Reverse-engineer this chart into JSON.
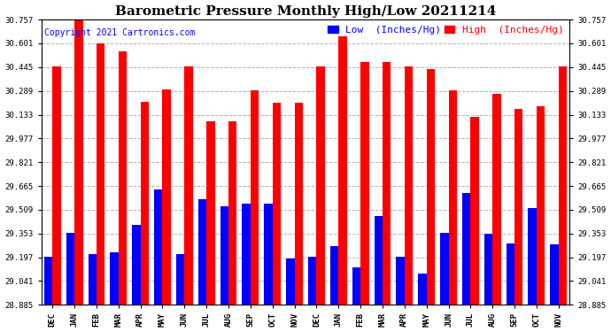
{
  "title": "Barometric Pressure Monthly High/Low 20211214",
  "copyright": "Copyright 2021 Cartronics.com",
  "legend_low": "Low  (Inches/Hg)",
  "legend_high": "High  (Inches/Hg)",
  "months": [
    "DEC",
    "JAN",
    "FEB",
    "MAR",
    "APR",
    "MAY",
    "JUN",
    "JUL",
    "AUG",
    "SEP",
    "OCT",
    "NOV",
    "DEC",
    "JAN",
    "FEB",
    "MAR",
    "APR",
    "MAY",
    "JUN",
    "JUL",
    "AUG",
    "SEP",
    "OCT",
    "NOV"
  ],
  "high_values": [
    30.45,
    30.76,
    30.6,
    30.55,
    30.22,
    30.3,
    30.45,
    30.09,
    30.09,
    30.29,
    30.21,
    30.21,
    30.45,
    30.65,
    30.48,
    30.48,
    30.45,
    30.43,
    30.29,
    30.12,
    30.27,
    30.17,
    30.19,
    30.45
  ],
  "low_values": [
    29.2,
    29.36,
    29.22,
    29.23,
    29.41,
    29.64,
    29.22,
    29.58,
    29.53,
    29.55,
    29.55,
    29.19,
    29.2,
    29.27,
    29.13,
    29.47,
    29.2,
    29.09,
    29.36,
    29.62,
    29.35,
    29.29,
    29.52,
    29.28
  ],
  "yticks": [
    28.885,
    29.041,
    29.197,
    29.353,
    29.509,
    29.665,
    29.821,
    29.977,
    30.133,
    30.289,
    30.445,
    30.601,
    30.757
  ],
  "ymin": 28.885,
  "ymax": 30.757,
  "bar_color_high": "#ff0000",
  "bar_color_low": "#0000ff",
  "background_color": "#ffffff",
  "grid_color": "#aaaaaa",
  "title_fontsize": 11,
  "copyright_fontsize": 7,
  "legend_fontsize": 8,
  "tick_fontsize": 6.5
}
